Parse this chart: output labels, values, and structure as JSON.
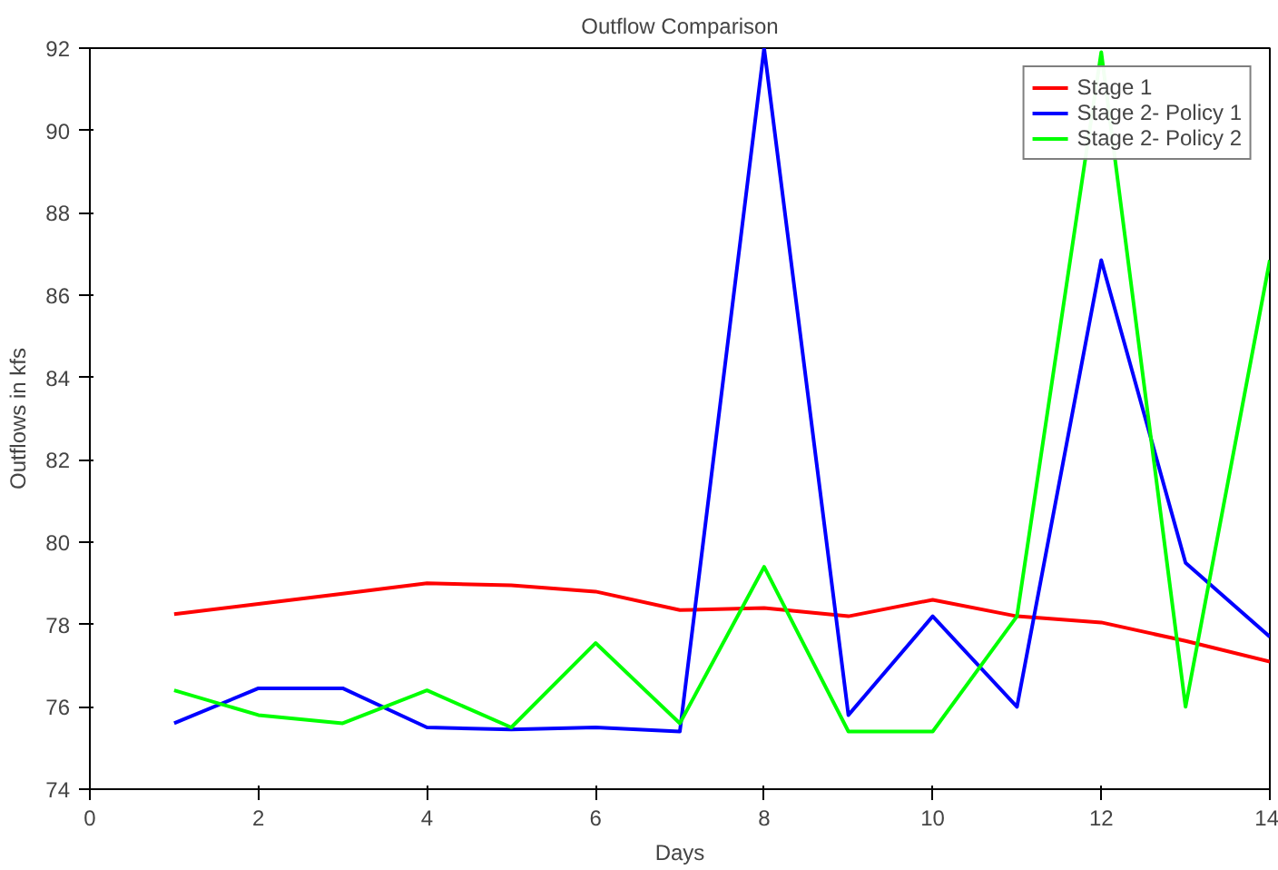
{
  "chart_data": {
    "type": "line",
    "title": "Outflow Comparison",
    "xlabel": "Days",
    "ylabel": "Outflows in kfs",
    "x": [
      1,
      2,
      3,
      4,
      5,
      6,
      7,
      8,
      9,
      10,
      11,
      12,
      13,
      14
    ],
    "xlim": [
      0,
      14
    ],
    "xticks": [
      0,
      2,
      4,
      6,
      8,
      10,
      12,
      14
    ],
    "ylim": [
      74,
      92
    ],
    "yticks": [
      74,
      76,
      78,
      80,
      82,
      84,
      86,
      88,
      90,
      92
    ],
    "grid": false,
    "legend": "top right",
    "marker": "none",
    "line_style": "solid",
    "series": [
      {
        "name": "Stage 1",
        "color": "#ff0000",
        "values": [
          78.25,
          78.5,
          78.75,
          79.0,
          78.95,
          78.8,
          78.35,
          78.4,
          78.2,
          78.6,
          78.2,
          78.05,
          77.6,
          77.1
        ]
      },
      {
        "name": "Stage 2- Policy 1",
        "color": "#0000ff",
        "values": [
          75.6,
          76.45,
          76.45,
          75.5,
          75.45,
          75.5,
          75.4,
          92.0,
          75.8,
          78.2,
          76.0,
          86.85,
          79.5,
          77.7
        ]
      },
      {
        "name": "Stage 2- Policy 2",
        "color": "#00ff00",
        "values": [
          76.4,
          75.8,
          75.6,
          76.4,
          75.5,
          77.55,
          75.6,
          79.4,
          75.4,
          75.4,
          78.2,
          91.9,
          76.0,
          86.85
        ]
      }
    ]
  }
}
